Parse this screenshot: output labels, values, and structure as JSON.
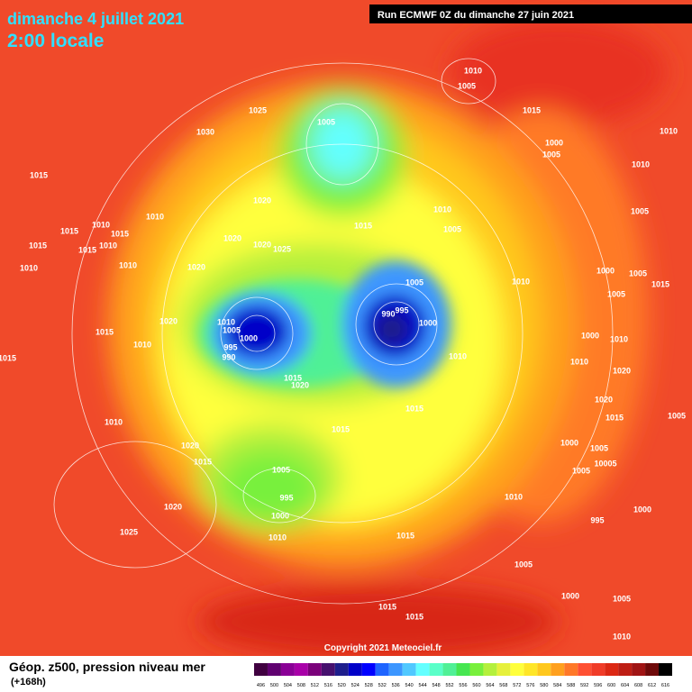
{
  "header": {
    "title": "dimanche 4 juillet 2021",
    "time": "2:00 locale",
    "run": "Run ECMWF 0Z du dimanche 27 juin 2021"
  },
  "map": {
    "copyright": "Copyright 2021 Meteociel.fr",
    "isobar_labels": [
      "1010",
      "1005",
      "1015",
      "1010",
      "1025",
      "1030",
      "1005",
      "1000",
      "1005",
      "1010",
      "1015",
      "1020",
      "1010",
      "1015",
      "1005",
      "1005",
      "1010",
      "1010",
      "1015",
      "1015",
      "1015",
      "1010",
      "1015",
      "1010",
      "1010",
      "1020",
      "1020",
      "1025",
      "1020",
      "1010",
      "1005",
      "1000",
      "1005",
      "1015",
      "1005",
      "995",
      "990",
      "1000",
      "1020",
      "1010",
      "1005",
      "1000",
      "995",
      "990",
      "1015",
      "1010",
      "1015",
      "1010",
      "1000",
      "1010",
      "1010",
      "1020",
      "1015",
      "1020",
      "1015",
      "1015",
      "1010",
      "1020",
      "1015",
      "1005",
      "1020",
      "1000",
      "1005",
      "1015",
      "1005",
      "10005",
      "1005",
      "995",
      "1010",
      "1020",
      "1000",
      "995",
      "1000",
      "1025",
      "1010",
      "1015",
      "1005",
      "1000",
      "1005",
      "1015",
      "1015",
      "1010"
    ]
  },
  "legend": {
    "title": "Géop. z500, pression niveau mer",
    "lead": "(+168h)",
    "labels": [
      "496",
      "500",
      "504",
      "508",
      "512",
      "516",
      "520",
      "524",
      "528",
      "532",
      "536",
      "540",
      "544",
      "548",
      "552",
      "556",
      "560",
      "564",
      "568",
      "572",
      "576",
      "580",
      "584",
      "588",
      "592",
      "596",
      "600",
      "604",
      "608",
      "612",
      "616"
    ],
    "colors": [
      "#400040",
      "#600070",
      "#8a0096",
      "#a800a8",
      "#7a007a",
      "#46106e",
      "#1e1e8c",
      "#0000c8",
      "#0000ff",
      "#1e64ff",
      "#3c96ff",
      "#50c8ff",
      "#64ffff",
      "#5affc8",
      "#50f096",
      "#46e650",
      "#78f03c",
      "#b4f03c",
      "#e6f03c",
      "#ffff3c",
      "#ffe628",
      "#ffc81e",
      "#ffa01e",
      "#ff7828",
      "#ff5032",
      "#f03c28",
      "#dc2814",
      "#be1e14",
      "#a01414",
      "#6e0a0a",
      "#000000"
    ]
  }
}
